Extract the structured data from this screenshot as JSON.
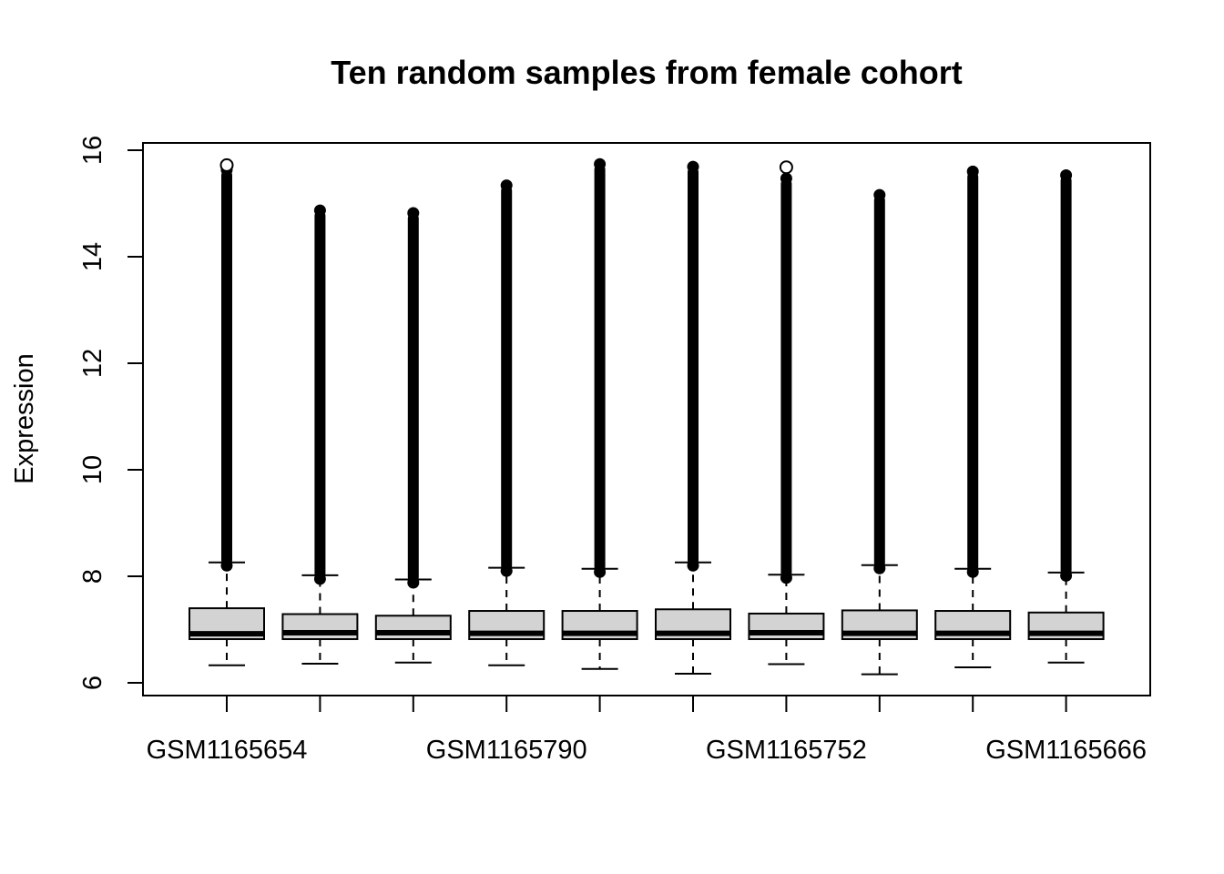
{
  "chart_data": {
    "type": "box",
    "title": "Ten random samples from female cohort",
    "xlabel": "",
    "ylabel": "Expression",
    "ylim": [
      6,
      16
    ],
    "y_ticks": [
      6,
      8,
      10,
      12,
      14,
      16
    ],
    "x_tick_labels_shown": [
      "GSM1165654",
      "GSM1165790",
      "GSM1165752",
      "GSM1165666"
    ],
    "colors": {
      "box_fill": "#d3d3d3",
      "line": "#000000",
      "background": "#ffffff"
    },
    "boxes": [
      {
        "min": 6.33,
        "q1": 6.82,
        "median": 6.92,
        "q3": 7.4,
        "whisker_high": 8.26,
        "outlier_bottom": 8.2,
        "outlier_top": 15.63,
        "outlier_max": 15.72
      },
      {
        "min": 6.36,
        "q1": 6.82,
        "median": 6.94,
        "q3": 7.29,
        "whisker_high": 8.02,
        "outlier_bottom": 7.95,
        "outlier_top": 14.87
      },
      {
        "min": 6.38,
        "q1": 6.82,
        "median": 6.94,
        "q3": 7.26,
        "whisker_high": 7.94,
        "outlier_bottom": 7.88,
        "outlier_top": 14.82
      },
      {
        "min": 6.33,
        "q1": 6.82,
        "median": 6.93,
        "q3": 7.35,
        "whisker_high": 8.16,
        "outlier_bottom": 8.1,
        "outlier_top": 15.34
      },
      {
        "min": 6.26,
        "q1": 6.82,
        "median": 6.93,
        "q3": 7.35,
        "whisker_high": 8.14,
        "outlier_bottom": 8.08,
        "outlier_top": 15.74
      },
      {
        "min": 6.17,
        "q1": 6.82,
        "median": 6.93,
        "q3": 7.38,
        "whisker_high": 8.26,
        "outlier_bottom": 8.2,
        "outlier_top": 15.69
      },
      {
        "min": 6.35,
        "q1": 6.82,
        "median": 6.94,
        "q3": 7.3,
        "whisker_high": 8.03,
        "outlier_bottom": 7.97,
        "outlier_top": 15.47,
        "outlier_max": 15.68
      },
      {
        "min": 6.16,
        "q1": 6.82,
        "median": 6.93,
        "q3": 7.36,
        "whisker_high": 8.21,
        "outlier_bottom": 8.15,
        "outlier_top": 15.16
      },
      {
        "min": 6.29,
        "q1": 6.82,
        "median": 6.93,
        "q3": 7.35,
        "whisker_high": 8.14,
        "outlier_bottom": 8.08,
        "outlier_top": 15.6
      },
      {
        "min": 6.38,
        "q1": 6.82,
        "median": 6.93,
        "q3": 7.32,
        "whisker_high": 8.07,
        "outlier_bottom": 8.01,
        "outlier_top": 15.53
      }
    ]
  }
}
